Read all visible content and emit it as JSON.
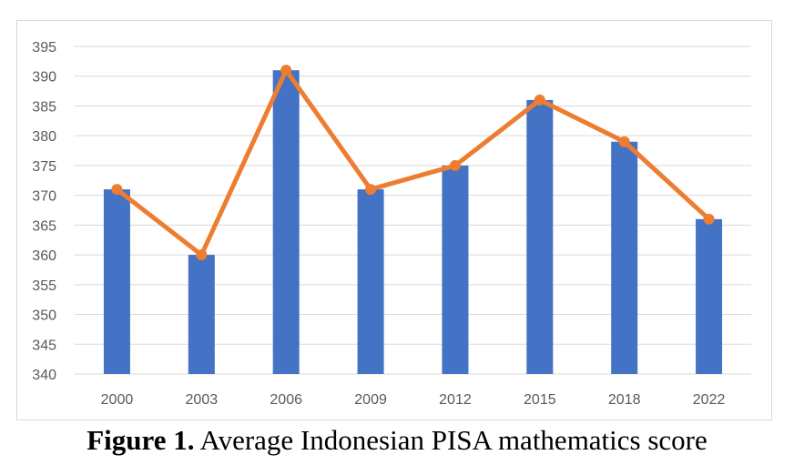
{
  "caption": {
    "label": "Figure 1.",
    "text": " Average Indonesian PISA mathematics score"
  },
  "colors": {
    "bar": "#4472c4",
    "line": "#ed7d31",
    "grid": "#d9d9d9",
    "axis_text": "#595959"
  },
  "chart_data": {
    "type": "bar",
    "categories": [
      "2000",
      "2003",
      "2006",
      "2009",
      "2012",
      "2015",
      "2018",
      "2022"
    ],
    "series": [
      {
        "type": "bar",
        "values": [
          371,
          360,
          391,
          371,
          375,
          386,
          379,
          366
        ]
      },
      {
        "type": "line",
        "marker": "circle",
        "values": [
          371,
          360,
          391,
          371,
          375,
          386,
          379,
          366
        ]
      }
    ],
    "title": "",
    "xlabel": "",
    "ylabel": "",
    "ylim": [
      340,
      395
    ],
    "yticks": [
      340,
      345,
      350,
      355,
      360,
      365,
      370,
      375,
      380,
      385,
      390,
      395
    ],
    "grid": "horizontal",
    "legend": "none"
  }
}
